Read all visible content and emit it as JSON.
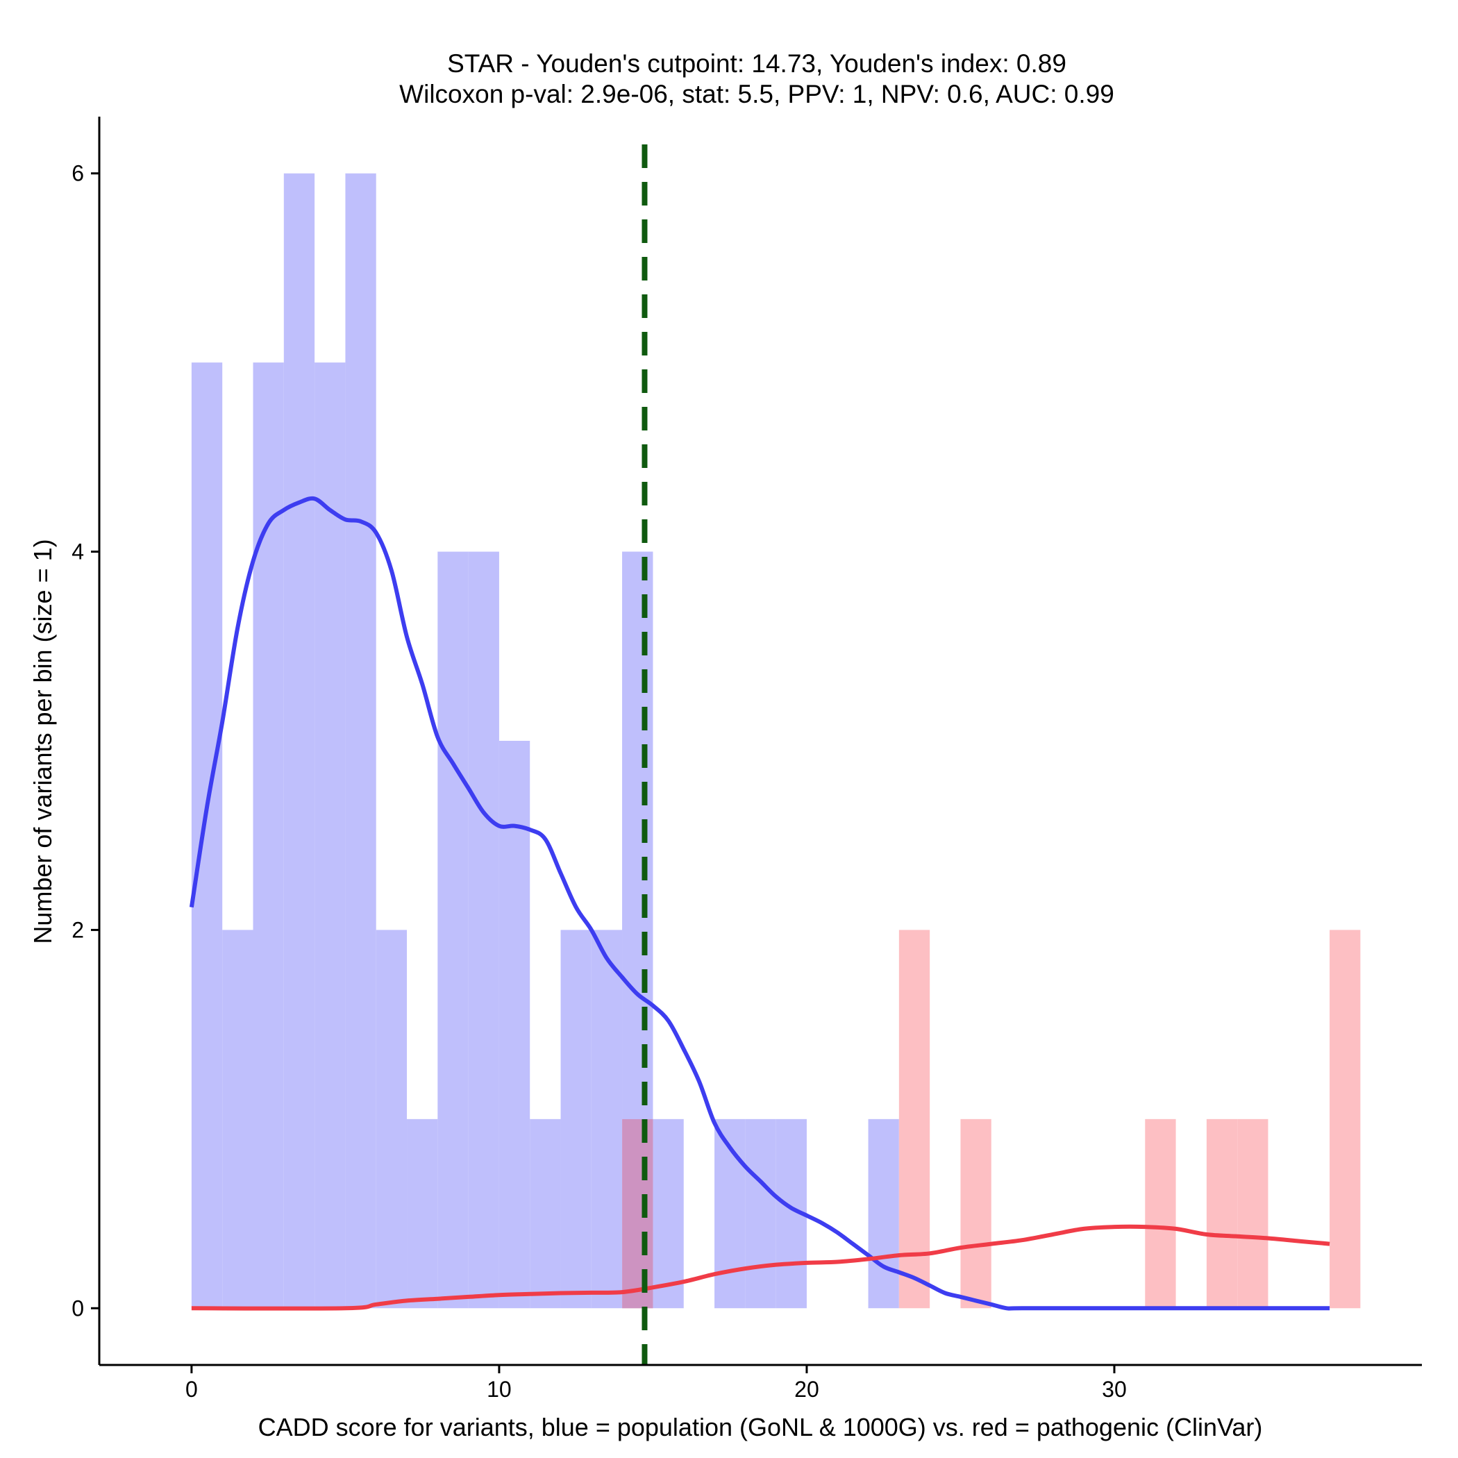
{
  "chart_data": {
    "type": "bar",
    "title_line1": "STAR - Youden's cutpoint: 14.73, Youden's index: 0.89",
    "title_line2": "Wilcoxon p-val: 2.9e-06, stat: 5.5, PPV: 1, NPV: 0.6, AUC: 0.99",
    "xlabel": "CADD score for variants, blue = population (GoNL & 1000G) vs. red = pathogenic (ClinVar)",
    "ylabel": "Number of variants per bin (size = 1)",
    "xlim": [
      -3,
      40
    ],
    "ylim": [
      -0.3,
      6.3
    ],
    "x_ticks": [
      0,
      10,
      20,
      30
    ],
    "y_ticks": [
      0,
      2,
      4,
      6
    ],
    "bin_size": 1,
    "cutpoint": 14.73,
    "colors": {
      "population_bar": "#bfbffc",
      "pathogenic_bar": "#fdbfc3",
      "overlap_bar": "#cd93c1",
      "population_line": "#3d3df0",
      "pathogenic_line": "#f03c47",
      "cutpoint_line": "#0f5a0f"
    },
    "series": [
      {
        "name": "population (GoNL & 1000G)",
        "bins": [
          {
            "start": 0,
            "count": 5
          },
          {
            "start": 1,
            "count": 2
          },
          {
            "start": 2,
            "count": 5
          },
          {
            "start": 3,
            "count": 6
          },
          {
            "start": 4,
            "count": 5
          },
          {
            "start": 5,
            "count": 6
          },
          {
            "start": 6,
            "count": 2
          },
          {
            "start": 7,
            "count": 1
          },
          {
            "start": 8,
            "count": 4
          },
          {
            "start": 9,
            "count": 4
          },
          {
            "start": 10,
            "count": 3
          },
          {
            "start": 11,
            "count": 1
          },
          {
            "start": 12,
            "count": 2
          },
          {
            "start": 13,
            "count": 2
          },
          {
            "start": 14,
            "count": 4
          },
          {
            "start": 15,
            "count": 1
          },
          {
            "start": 17,
            "count": 1
          },
          {
            "start": 18,
            "count": 1
          },
          {
            "start": 19,
            "count": 1
          },
          {
            "start": 22,
            "count": 1
          }
        ],
        "density": [
          [
            0,
            2.12
          ],
          [
            0.5,
            2.65
          ],
          [
            1,
            3.1
          ],
          [
            1.5,
            3.6
          ],
          [
            2,
            3.95
          ],
          [
            2.5,
            4.15
          ],
          [
            3,
            4.22
          ],
          [
            3.5,
            4.26
          ],
          [
            4,
            4.28
          ],
          [
            4.5,
            4.22
          ],
          [
            5,
            4.17
          ],
          [
            5.5,
            4.16
          ],
          [
            6,
            4.1
          ],
          [
            6.5,
            3.9
          ],
          [
            7,
            3.55
          ],
          [
            7.5,
            3.3
          ],
          [
            8,
            3.02
          ],
          [
            8.5,
            2.88
          ],
          [
            9,
            2.75
          ],
          [
            9.5,
            2.62
          ],
          [
            10,
            2.55
          ],
          [
            10.5,
            2.55
          ],
          [
            11,
            2.53
          ],
          [
            11.5,
            2.48
          ],
          [
            12,
            2.3
          ],
          [
            12.5,
            2.12
          ],
          [
            13,
            2.0
          ],
          [
            13.5,
            1.85
          ],
          [
            14,
            1.75
          ],
          [
            14.5,
            1.66
          ],
          [
            15,
            1.6
          ],
          [
            15.5,
            1.52
          ],
          [
            16,
            1.37
          ],
          [
            16.5,
            1.2
          ],
          [
            17,
            0.98
          ],
          [
            17.5,
            0.85
          ],
          [
            18,
            0.75
          ],
          [
            18.5,
            0.67
          ],
          [
            19,
            0.59
          ],
          [
            19.5,
            0.53
          ],
          [
            20,
            0.49
          ],
          [
            20.5,
            0.45
          ],
          [
            21,
            0.4
          ],
          [
            21.5,
            0.34
          ],
          [
            22,
            0.28
          ],
          [
            22.5,
            0.22
          ],
          [
            23,
            0.19
          ],
          [
            23.5,
            0.16
          ],
          [
            24,
            0.12
          ],
          [
            24.5,
            0.08
          ],
          [
            25,
            0.06
          ],
          [
            25.5,
            0.04
          ],
          [
            26,
            0.02
          ],
          [
            26.5,
            0.0
          ],
          [
            27,
            0.0
          ],
          [
            30,
            0.0
          ],
          [
            33,
            0.0
          ],
          [
            37,
            0.0
          ]
        ]
      },
      {
        "name": "pathogenic (ClinVar)",
        "bins": [
          {
            "start": 14,
            "count": 1
          },
          {
            "start": 23,
            "count": 2
          },
          {
            "start": 25,
            "count": 1
          },
          {
            "start": 31,
            "count": 1
          },
          {
            "start": 33,
            "count": 1
          },
          {
            "start": 34,
            "count": 1
          },
          {
            "start": 37,
            "count": 2
          }
        ],
        "density": [
          [
            0,
            0.0
          ],
          [
            5,
            0.0
          ],
          [
            6,
            0.02
          ],
          [
            7,
            0.04
          ],
          [
            8,
            0.05
          ],
          [
            9,
            0.06
          ],
          [
            10,
            0.07
          ],
          [
            11,
            0.075
          ],
          [
            12,
            0.08
          ],
          [
            13,
            0.082
          ],
          [
            14,
            0.085
          ],
          [
            15,
            0.11
          ],
          [
            16,
            0.14
          ],
          [
            17,
            0.18
          ],
          [
            18,
            0.21
          ],
          [
            19,
            0.23
          ],
          [
            20,
            0.24
          ],
          [
            21,
            0.245
          ],
          [
            22,
            0.26
          ],
          [
            23,
            0.28
          ],
          [
            24,
            0.29
          ],
          [
            25,
            0.32
          ],
          [
            26,
            0.34
          ],
          [
            27,
            0.36
          ],
          [
            28,
            0.39
          ],
          [
            29,
            0.42
          ],
          [
            30,
            0.43
          ],
          [
            31,
            0.43
          ],
          [
            32,
            0.42
          ],
          [
            33,
            0.39
          ],
          [
            34,
            0.38
          ],
          [
            35,
            0.37
          ],
          [
            36,
            0.355
          ],
          [
            37,
            0.34
          ]
        ]
      }
    ]
  }
}
